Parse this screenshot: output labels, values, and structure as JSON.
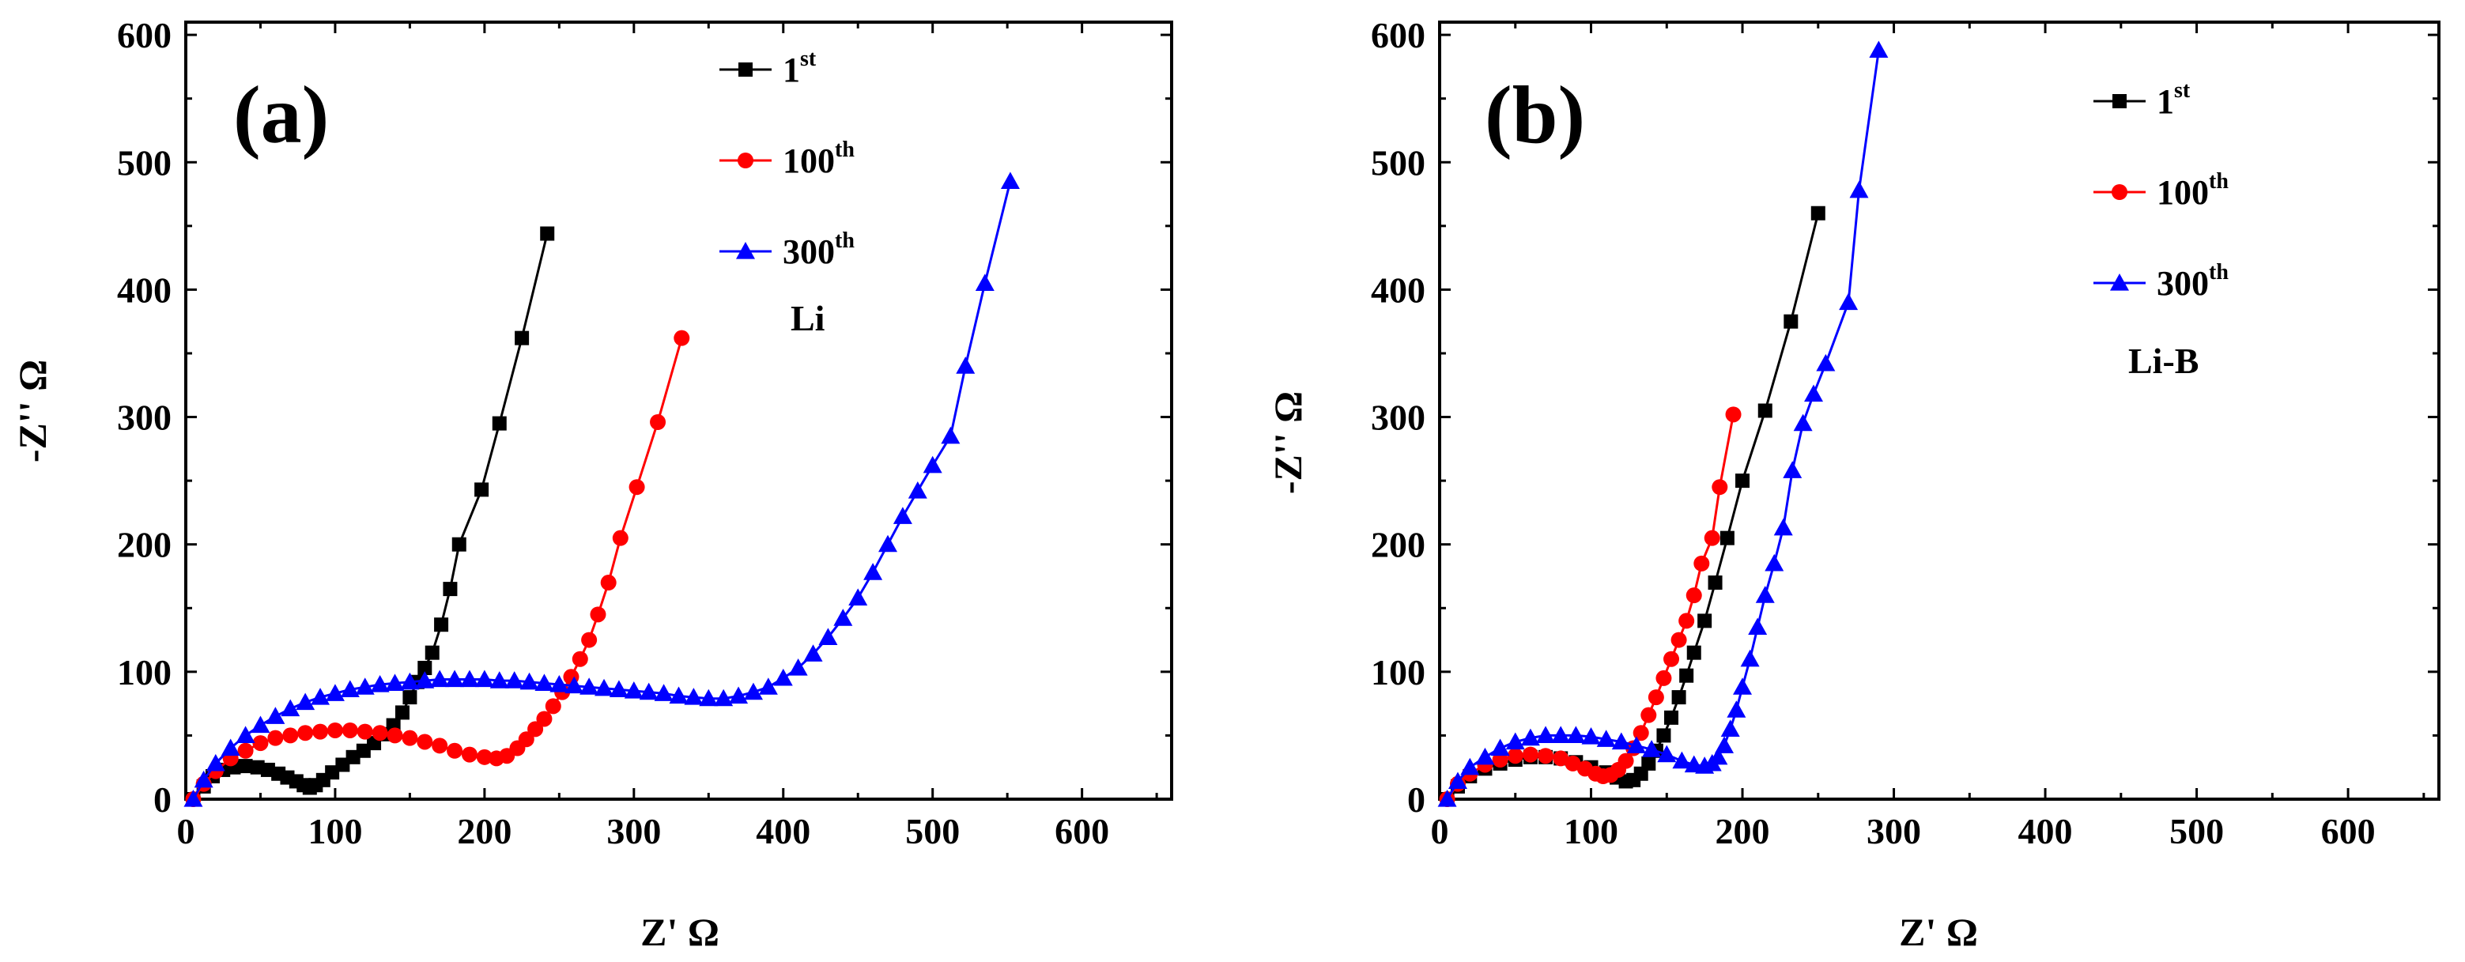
{
  "chart_data": [
    {
      "type": "line",
      "panel_label": "(a)",
      "annotation": "Li",
      "xlabel": "Z' Ω",
      "ylabel": "-Z'' Ω",
      "xlim": [
        0,
        660
      ],
      "ylim": [
        0,
        610
      ],
      "xticks": [
        0,
        100,
        200,
        300,
        400,
        500,
        600
      ],
      "yticks": [
        0,
        100,
        200,
        300,
        400,
        500,
        600
      ],
      "legend_position": "top-right",
      "series": [
        {
          "name": "1st",
          "label_main": "1",
          "label_sup": "st",
          "color": "#000000",
          "marker": "square",
          "points": [
            [
              5,
              0
            ],
            [
              12,
              10
            ],
            [
              18,
              18
            ],
            [
              25,
              23
            ],
            [
              32,
              25
            ],
            [
              40,
              26
            ],
            [
              48,
              25
            ],
            [
              55,
              23
            ],
            [
              62,
              20
            ],
            [
              68,
              17
            ],
            [
              74,
              14
            ],
            [
              79,
              11
            ],
            [
              83,
              9
            ],
            [
              87,
              11
            ],
            [
              92,
              15
            ],
            [
              98,
              21
            ],
            [
              105,
              27
            ],
            [
              112,
              33
            ],
            [
              119,
              38
            ],
            [
              126,
              44
            ],
            [
              133,
              51
            ],
            [
              139,
              58
            ],
            [
              145,
              68
            ],
            [
              150,
              80
            ],
            [
              155,
              92
            ],
            [
              160,
              103
            ],
            [
              165,
              115
            ],
            [
              171,
              137
            ],
            [
              177,
              165
            ],
            [
              183,
              200
            ],
            [
              198,
              243
            ],
            [
              210,
              295
            ],
            [
              225,
              362
            ],
            [
              242,
              444
            ]
          ]
        },
        {
          "name": "100th",
          "label_main": "100",
          "label_sup": "th",
          "color": "#ff0000",
          "marker": "circle",
          "points": [
            [
              5,
              0
            ],
            [
              12,
              12
            ],
            [
              20,
              22
            ],
            [
              30,
              32
            ],
            [
              40,
              38
            ],
            [
              50,
              44
            ],
            [
              60,
              48
            ],
            [
              70,
              50
            ],
            [
              80,
              52
            ],
            [
              90,
              53
            ],
            [
              100,
              54
            ],
            [
              110,
              54
            ],
            [
              120,
              53
            ],
            [
              130,
              52
            ],
            [
              140,
              50
            ],
            [
              150,
              48
            ],
            [
              160,
              45
            ],
            [
              170,
              42
            ],
            [
              180,
              38
            ],
            [
              190,
              35
            ],
            [
              200,
              33
            ],
            [
              208,
              32
            ],
            [
              215,
              34
            ],
            [
              222,
              40
            ],
            [
              228,
              47
            ],
            [
              234,
              55
            ],
            [
              240,
              63
            ],
            [
              246,
              73
            ],
            [
              252,
              84
            ],
            [
              258,
              96
            ],
            [
              264,
              110
            ],
            [
              270,
              125
            ],
            [
              276,
              145
            ],
            [
              283,
              170
            ],
            [
              291,
              205
            ],
            [
              302,
              245
            ],
            [
              316,
              296
            ],
            [
              332,
              362
            ]
          ]
        },
        {
          "name": "300th",
          "label_main": "300",
          "label_sup": "th",
          "color": "#0000ff",
          "marker": "triangle",
          "points": [
            [
              5,
              0
            ],
            [
              12,
              15
            ],
            [
              20,
              28
            ],
            [
              30,
              40
            ],
            [
              40,
              50
            ],
            [
              50,
              58
            ],
            [
              60,
              65
            ],
            [
              70,
              71
            ],
            [
              80,
              76
            ],
            [
              90,
              80
            ],
            [
              100,
              83
            ],
            [
              110,
              86
            ],
            [
              120,
              88
            ],
            [
              130,
              90
            ],
            [
              140,
              91
            ],
            [
              150,
              92
            ],
            [
              160,
              93
            ],
            [
              170,
              94
            ],
            [
              180,
              94
            ],
            [
              190,
              94
            ],
            [
              200,
              94
            ],
            [
              210,
              93
            ],
            [
              220,
              93
            ],
            [
              230,
              92
            ],
            [
              240,
              91
            ],
            [
              250,
              90
            ],
            [
              260,
              89
            ],
            [
              270,
              88
            ],
            [
              280,
              87
            ],
            [
              290,
              86
            ],
            [
              300,
              85
            ],
            [
              310,
              84
            ],
            [
              320,
              83
            ],
            [
              330,
              81
            ],
            [
              340,
              80
            ],
            [
              350,
              79
            ],
            [
              360,
              79
            ],
            [
              370,
              81
            ],
            [
              380,
              84
            ],
            [
              390,
              88
            ],
            [
              400,
              95
            ],
            [
              410,
              103
            ],
            [
              420,
              114
            ],
            [
              430,
              127
            ],
            [
              440,
              142
            ],
            [
              450,
              158
            ],
            [
              460,
              178
            ],
            [
              470,
              200
            ],
            [
              480,
              222
            ],
            [
              490,
              242
            ],
            [
              500,
              262
            ],
            [
              512,
              285
            ],
            [
              522,
              340
            ],
            [
              535,
              405
            ],
            [
              552,
              485
            ]
          ]
        }
      ]
    },
    {
      "type": "line",
      "panel_label": "(b)",
      "annotation": "Li-B",
      "xlabel": "Z' Ω",
      "ylabel": "-Z'' Ω",
      "xlim": [
        0,
        660
      ],
      "ylim": [
        0,
        610
      ],
      "xticks": [
        0,
        100,
        200,
        300,
        400,
        500,
        600
      ],
      "yticks": [
        0,
        100,
        200,
        300,
        400,
        500,
        600
      ],
      "legend_position": "top-right",
      "series": [
        {
          "name": "1st",
          "label_main": "1",
          "label_sup": "st",
          "color": "#000000",
          "marker": "square",
          "points": [
            [
              5,
              0
            ],
            [
              12,
              10
            ],
            [
              20,
              18
            ],
            [
              30,
              24
            ],
            [
              40,
              28
            ],
            [
              50,
              31
            ],
            [
              60,
              33
            ],
            [
              70,
              33
            ],
            [
              80,
              32
            ],
            [
              90,
              29
            ],
            [
              100,
              25
            ],
            [
              110,
              21
            ],
            [
              117,
              17
            ],
            [
              123,
              14
            ],
            [
              128,
              15
            ],
            [
              133,
              20
            ],
            [
              138,
              28
            ],
            [
              143,
              38
            ],
            [
              148,
              50
            ],
            [
              153,
              64
            ],
            [
              158,
              80
            ],
            [
              163,
              97
            ],
            [
              168,
              115
            ],
            [
              175,
              140
            ],
            [
              182,
              170
            ],
            [
              190,
              205
            ],
            [
              200,
              250
            ],
            [
              215,
              305
            ],
            [
              232,
              375
            ],
            [
              250,
              460
            ]
          ]
        },
        {
          "name": "100th",
          "label_main": "100",
          "label_sup": "th",
          "color": "#ff0000",
          "marker": "circle",
          "points": [
            [
              5,
              0
            ],
            [
              12,
              12
            ],
            [
              20,
              20
            ],
            [
              30,
              27
            ],
            [
              40,
              31
            ],
            [
              50,
              34
            ],
            [
              60,
              35
            ],
            [
              70,
              34
            ],
            [
              80,
              32
            ],
            [
              88,
              28
            ],
            [
              96,
              24
            ],
            [
              103,
              20
            ],
            [
              108,
              18
            ],
            [
              113,
              19
            ],
            [
              118,
              23
            ],
            [
              123,
              30
            ],
            [
              128,
              40
            ],
            [
              133,
              52
            ],
            [
              138,
              66
            ],
            [
              143,
              80
            ],
            [
              148,
              95
            ],
            [
              153,
              110
            ],
            [
              158,
              125
            ],
            [
              163,
              140
            ],
            [
              168,
              160
            ],
            [
              173,
              185
            ],
            [
              180,
              205
            ],
            [
              185,
              245
            ],
            [
              194,
              302
            ]
          ]
        },
        {
          "name": "300th",
          "label_main": "300",
          "label_sup": "th",
          "color": "#0000ff",
          "marker": "triangle",
          "points": [
            [
              5,
              0
            ],
            [
              12,
              14
            ],
            [
              20,
              25
            ],
            [
              30,
              33
            ],
            [
              40,
              40
            ],
            [
              50,
              45
            ],
            [
              60,
              48
            ],
            [
              70,
              50
            ],
            [
              80,
              50
            ],
            [
              90,
              50
            ],
            [
              100,
              49
            ],
            [
              110,
              47
            ],
            [
              120,
              45
            ],
            [
              130,
              42
            ],
            [
              140,
              39
            ],
            [
              150,
              35
            ],
            [
              160,
              30
            ],
            [
              168,
              27
            ],
            [
              175,
              26
            ],
            [
              180,
              28
            ],
            [
              184,
              33
            ],
            [
              188,
              42
            ],
            [
              192,
              55
            ],
            [
              196,
              70
            ],
            [
              200,
              88
            ],
            [
              205,
              110
            ],
            [
              210,
              135
            ],
            [
              215,
              160
            ],
            [
              221,
              185
            ],
            [
              227,
              213
            ],
            [
              233,
              258
            ],
            [
              240,
              295
            ],
            [
              247,
              318
            ],
            [
              255,
              342
            ],
            [
              270,
              390
            ],
            [
              277,
              478
            ],
            [
              290,
              588
            ]
          ]
        }
      ]
    }
  ]
}
